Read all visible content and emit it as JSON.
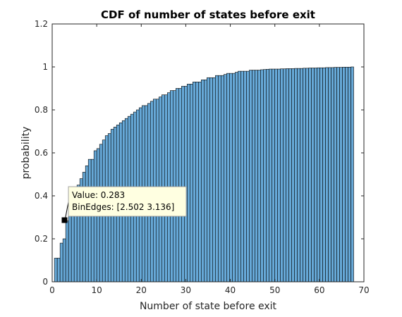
{
  "chart_data": {
    "type": "bar",
    "title": "CDF of number of states before exit",
    "xlabel": "Number of state before exit",
    "ylabel": "probability",
    "xlim": [
      0,
      70
    ],
    "ylim": [
      0,
      1.2
    ],
    "xticks": [
      "0",
      "10",
      "20",
      "30",
      "40",
      "50",
      "60",
      "70"
    ],
    "yticks": [
      "0",
      "0.2",
      "0.4",
      "0.6",
      "0.8",
      "1",
      "1.2"
    ],
    "grid": false,
    "bar_color": "#67a9d8",
    "edge_color": "#000000",
    "bin_start": 0.5,
    "bin_width": 0.634,
    "values": [
      0.11,
      0.11,
      0.18,
      0.2,
      0.283,
      0.33,
      0.37,
      0.41,
      0.45,
      0.48,
      0.51,
      0.54,
      0.57,
      0.57,
      0.61,
      0.62,
      0.64,
      0.66,
      0.68,
      0.69,
      0.71,
      0.72,
      0.73,
      0.74,
      0.75,
      0.76,
      0.77,
      0.78,
      0.79,
      0.8,
      0.81,
      0.82,
      0.82,
      0.83,
      0.84,
      0.85,
      0.85,
      0.86,
      0.87,
      0.87,
      0.88,
      0.89,
      0.89,
      0.9,
      0.9,
      0.91,
      0.91,
      0.92,
      0.92,
      0.93,
      0.93,
      0.93,
      0.94,
      0.94,
      0.95,
      0.95,
      0.95,
      0.96,
      0.96,
      0.96,
      0.965,
      0.97,
      0.97,
      0.97,
      0.975,
      0.98,
      0.98,
      0.98,
      0.98,
      0.985,
      0.985,
      0.985,
      0.985,
      0.987,
      0.988,
      0.989,
      0.99,
      0.99,
      0.99,
      0.99,
      0.991,
      0.991,
      0.992,
      0.992,
      0.992,
      0.993,
      0.993,
      0.993,
      0.994,
      0.994,
      0.995,
      0.995,
      0.995,
      0.996,
      0.996,
      0.996,
      0.997,
      0.997,
      0.997,
      0.998,
      0.998,
      0.998,
      0.999,
      0.999,
      0.999,
      1.0
    ],
    "datatip": {
      "value_line": "Value: 0.283",
      "binedges_line": "BinEdges: [2.502 3.136]",
      "value": 0.283,
      "bin_edges": [
        2.502,
        3.136
      ]
    }
  }
}
